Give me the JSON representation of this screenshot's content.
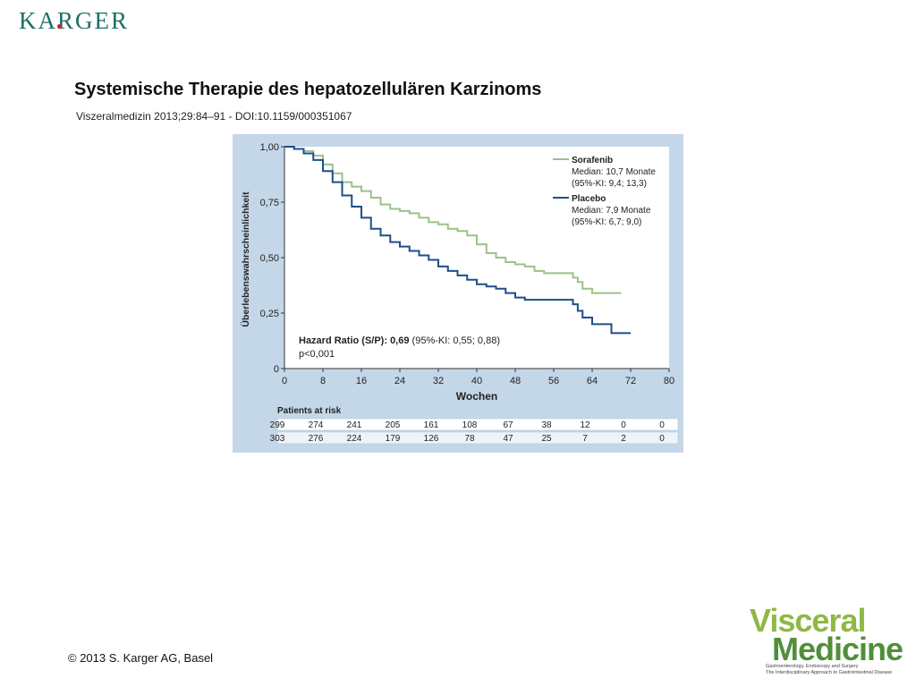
{
  "header": {
    "publisher_logo": "KARGER",
    "title": "Systemische Therapie des hepatozellulären Karzinoms",
    "citation": "Viszeralmedizin 2013;29:84–91 -  DOI:10.1159/000351067"
  },
  "footer": {
    "copyright": "© 2013 S. Karger AG, Basel",
    "journal_logo_line1": "Visceral",
    "journal_logo_line2": "Medicine",
    "journal_logo_sub1": "Gastroenterology, Endoscopy and Surgery",
    "journal_logo_sub2": "The Interdisciplinary Approach to Gastrointestinal Disease"
  },
  "colors": {
    "panel_bg": "#c4d7e8",
    "sorafenib": "#9bc28a",
    "placebo": "#1f4e8c",
    "brand": "#1e6e66"
  },
  "chart_data": {
    "type": "line",
    "title": "",
    "xlabel": "Wochen",
    "ylabel": "Überlebenswahrscheinlichkeit",
    "xlim": [
      0,
      80
    ],
    "ylim": [
      0,
      1
    ],
    "x_ticks": [
      "0",
      "8",
      "16",
      "24",
      "32",
      "40",
      "48",
      "56",
      "64",
      "72",
      "80"
    ],
    "y_ticks": [
      "1,00",
      "0,75",
      "0,50",
      "0,25",
      "0"
    ],
    "grid": false,
    "legend_position": "top-right",
    "series": [
      {
        "name": "Sorafenib",
        "detail1": "Median: 10,7 Monate",
        "detail2": "(95%-KI: 9,4; 13,3)",
        "color": "#9bc28a",
        "x": [
          0,
          2,
          4,
          6,
          8,
          10,
          12,
          14,
          16,
          18,
          20,
          22,
          24,
          26,
          28,
          30,
          32,
          34,
          36,
          38,
          40,
          42,
          44,
          46,
          48,
          50,
          52,
          54,
          56,
          58,
          60,
          61,
          62,
          64,
          66,
          68,
          70
        ],
        "y": [
          1.0,
          0.99,
          0.98,
          0.96,
          0.92,
          0.88,
          0.84,
          0.82,
          0.8,
          0.77,
          0.74,
          0.72,
          0.71,
          0.7,
          0.68,
          0.66,
          0.65,
          0.63,
          0.62,
          0.6,
          0.56,
          0.52,
          0.5,
          0.48,
          0.47,
          0.46,
          0.44,
          0.43,
          0.43,
          0.43,
          0.41,
          0.39,
          0.36,
          0.34,
          0.34,
          0.34,
          0.34
        ]
      },
      {
        "name": "Placebo",
        "detail1": "Median: 7,9 Monate",
        "detail2": "(95%-KI: 6,7; 9,0)",
        "color": "#1f4e8c",
        "x": [
          0,
          2,
          4,
          6,
          8,
          10,
          12,
          14,
          16,
          18,
          20,
          22,
          24,
          26,
          28,
          30,
          32,
          34,
          36,
          38,
          40,
          42,
          44,
          46,
          48,
          50,
          52,
          54,
          56,
          58,
          60,
          61,
          62,
          64,
          66,
          68,
          70,
          72
        ],
        "y": [
          1.0,
          0.99,
          0.97,
          0.94,
          0.89,
          0.84,
          0.78,
          0.73,
          0.68,
          0.63,
          0.6,
          0.57,
          0.55,
          0.53,
          0.51,
          0.49,
          0.46,
          0.44,
          0.42,
          0.4,
          0.38,
          0.37,
          0.36,
          0.34,
          0.32,
          0.31,
          0.31,
          0.31,
          0.31,
          0.31,
          0.29,
          0.26,
          0.23,
          0.2,
          0.2,
          0.16,
          0.16,
          0.16
        ]
      }
    ],
    "annotation_line1_bold": "Hazard Ratio (S/P): 0,69",
    "annotation_line1_rest": " (95%-KI: 0,55; 0,88)",
    "annotation_line2": "p<0,001",
    "risk_table": {
      "title": "Patients at risk",
      "rows": [
        [
          "299",
          "274",
          "241",
          "205",
          "161",
          "108",
          "67",
          "38",
          "12",
          "0",
          "0"
        ],
        [
          "303",
          "276",
          "224",
          "179",
          "126",
          "78",
          "47",
          "25",
          "7",
          "2",
          "0"
        ]
      ]
    }
  }
}
